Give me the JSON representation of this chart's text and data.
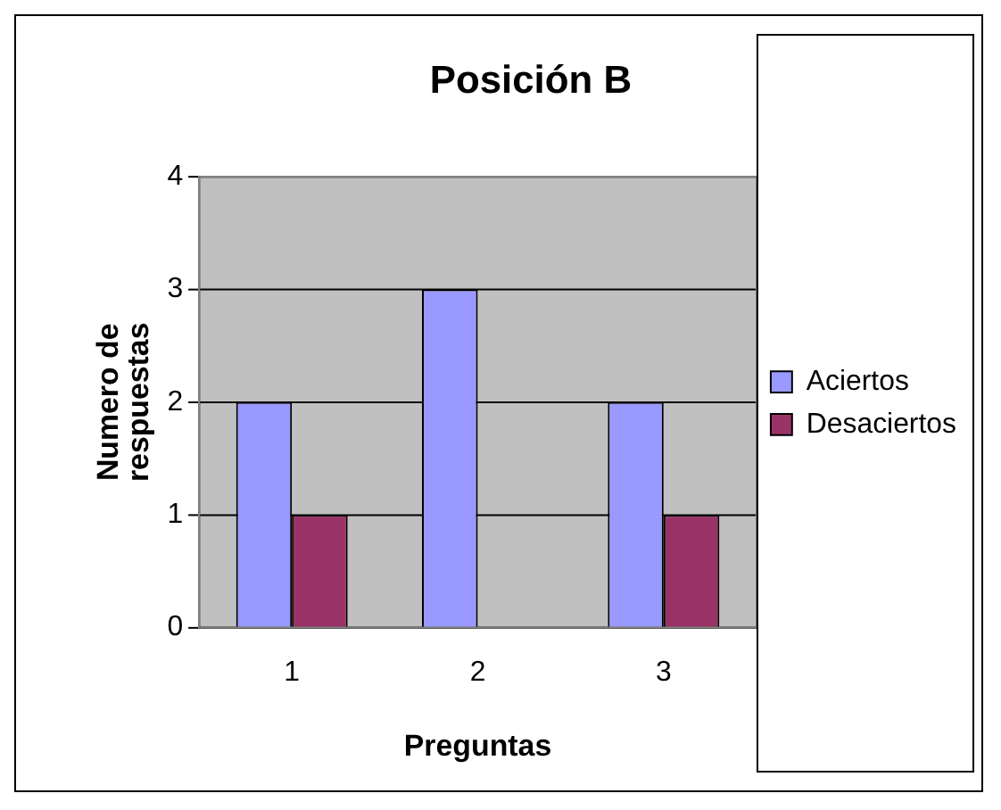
{
  "chart_data": {
    "type": "bar",
    "title": "Posición B",
    "xlabel": "Preguntas",
    "ylabel": "Numero de respuestas",
    "categories": [
      "1",
      "2",
      "3"
    ],
    "series": [
      {
        "name": "Aciertos",
        "color": "#9999ff",
        "values": [
          2,
          3,
          2
        ]
      },
      {
        "name": "Desaciertos",
        "color": "#993366",
        "values": [
          1,
          0,
          1
        ]
      }
    ],
    "ylim": [
      0,
      4
    ],
    "yticks": [
      0,
      1,
      2,
      3,
      4
    ],
    "grid": "y",
    "legend": "right"
  }
}
